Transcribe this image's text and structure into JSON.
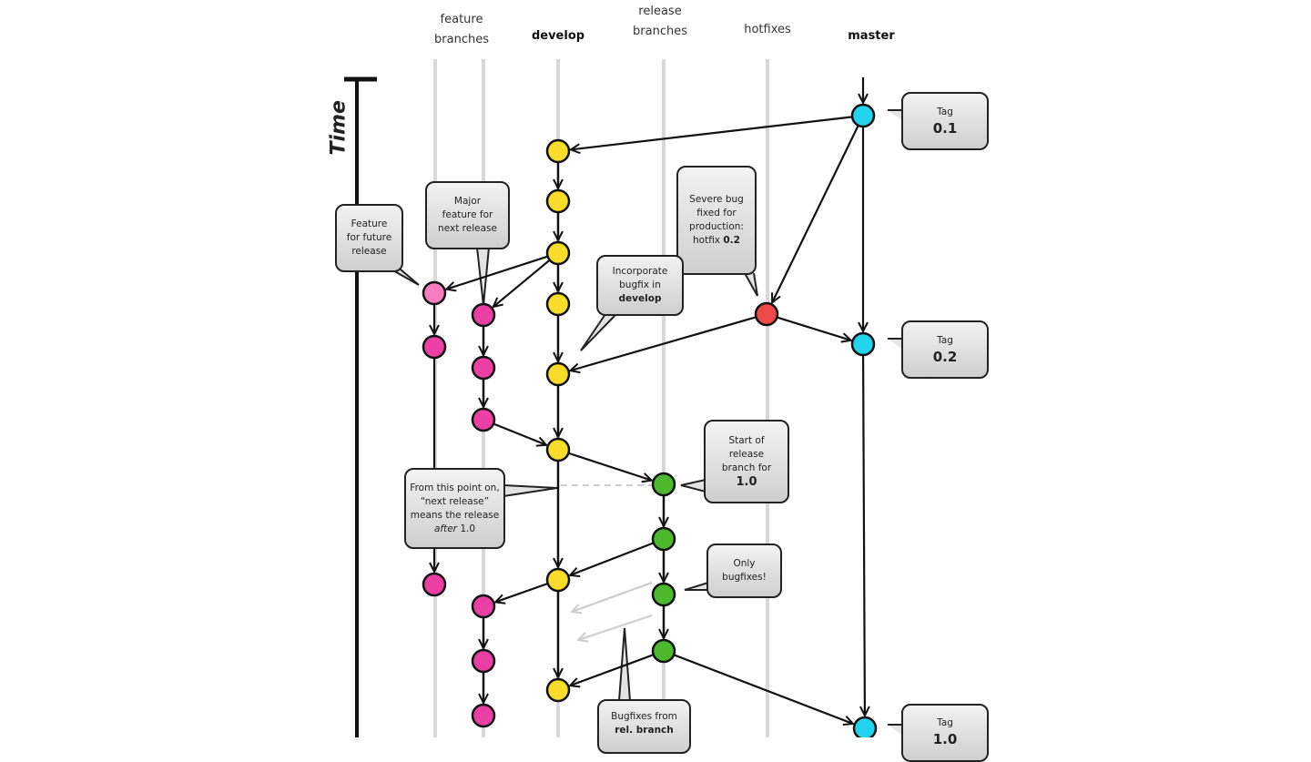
{
  "lanes": {
    "feature": [
      "feature",
      "branches"
    ],
    "develop": "develop",
    "release": [
      "release",
      "branches"
    ],
    "hotfixes": "hotfixes",
    "master": "master"
  },
  "time_label": "Time",
  "colors": {
    "master": "#22d3ee",
    "develop": "#f9dc2a",
    "feature": "#ec3fa4",
    "feature_light": "#f47cbf",
    "release": "#4cb82c",
    "hotfix": "#ee4a4a",
    "lane": "#d8d8d8"
  },
  "callouts": {
    "tag01": {
      "label": "Tag",
      "value": "0.1"
    },
    "tag02": {
      "label": "Tag",
      "value": "0.2"
    },
    "tag10": {
      "label": "Tag",
      "value": "1.0"
    },
    "future": [
      "Feature",
      "for future",
      "release"
    ],
    "major": [
      "Major",
      "feature for",
      "next release"
    ],
    "severe": {
      "lines": [
        "Severe bug",
        "fixed for",
        "production:"
      ],
      "prefix": "hotfix ",
      "bold": "0.2"
    },
    "incorporate": {
      "lines": [
        "Incorporate",
        "bugfix in"
      ],
      "bold": "develop"
    },
    "start_release": {
      "lines": [
        "Start of",
        "release",
        "branch for"
      ],
      "bold": "1.0"
    },
    "next_release": {
      "lines": [
        "From this point on,",
        "“next release”",
        "means the release"
      ],
      "italic": "after",
      "suffix": " 1.0"
    },
    "only_bugfixes": [
      "Only",
      "bugfixes!"
    ],
    "bugfixes_rel": {
      "line": "Bugfixes from",
      "bold": "rel. branch"
    }
  }
}
